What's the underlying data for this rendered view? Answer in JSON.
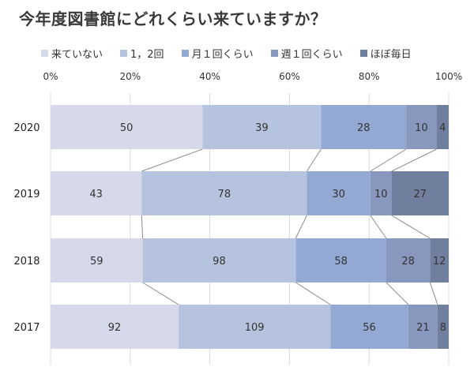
{
  "chart_data": {
    "type": "bar",
    "orientation": "horizontal",
    "stacked": "percent",
    "title": "今年度図書館にどれくらい来ていますか？",
    "categories": [
      "2020",
      "2019",
      "2018",
      "2017"
    ],
    "series": [
      {
        "name": "来ていない",
        "color": "#d5d9ea",
        "values": [
          50,
          43,
          59,
          92
        ]
      },
      {
        "name": "1，2回",
        "color": "#b6c3de",
        "values": [
          39,
          78,
          98,
          109
        ]
      },
      {
        "name": "月１回くらい",
        "color": "#93a8d2",
        "values": [
          28,
          30,
          58,
          56
        ]
      },
      {
        "name": "週１回くらい",
        "color": "#8797bd",
        "values": [
          10,
          10,
          28,
          21
        ]
      },
      {
        "name": "ほぼ毎日",
        "color": "#717f9e",
        "values": [
          4,
          27,
          12,
          8
        ]
      }
    ],
    "x_ticks": [
      "0%",
      "20%",
      "40%",
      "60%",
      "80%",
      "100%"
    ],
    "xlim": [
      0,
      100
    ],
    "xaxis_position": "top",
    "grid": true,
    "series_lines": true,
    "legend_position": "top"
  }
}
